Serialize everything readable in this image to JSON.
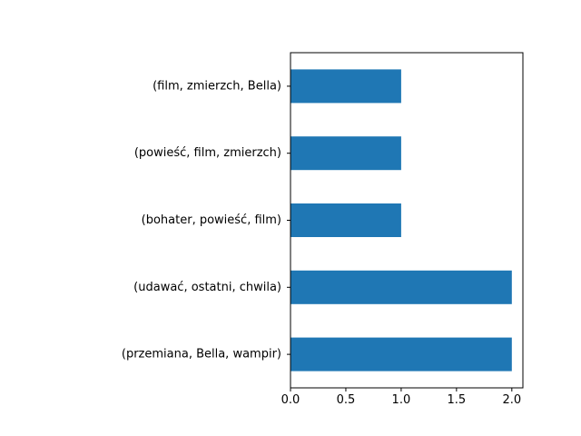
{
  "chart_data": {
    "type": "bar",
    "orientation": "horizontal",
    "categories": [
      "(przemiana, Bella, wampir)",
      "(udawać, ostatni, chwila)",
      "(bohater, powieść, film)",
      "(powieść, film, zmierzch)",
      "(film, zmierzch, Bella)"
    ],
    "values": [
      2,
      2,
      1,
      1,
      1
    ],
    "xlim": [
      0,
      2.1
    ],
    "xticks": [
      "0.0",
      "0.5",
      "1.0",
      "1.5",
      "2.0"
    ],
    "title": "",
    "xlabel": "",
    "ylabel": "",
    "grid": false,
    "bar_color": "#1f77b4"
  }
}
